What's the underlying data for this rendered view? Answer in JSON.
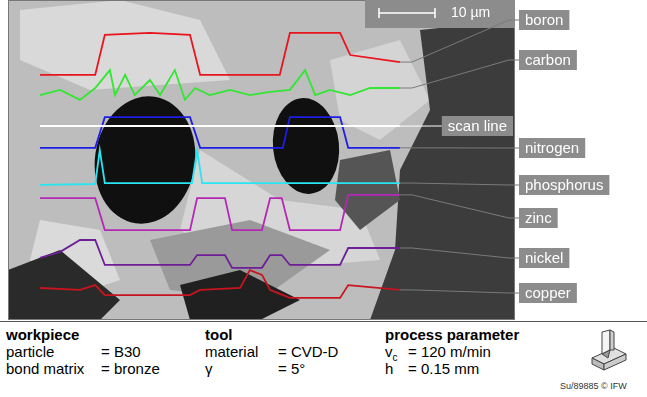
{
  "chart_data": {
    "type": "line",
    "annotations": [
      "10 µm"
    ],
    "xlim": [
      0,
      100
    ],
    "ylim": [
      0,
      100
    ],
    "xticks": [
      0,
      100
    ],
    "yticks": [
      0,
      100
    ],
    "grid": false,
    "tick_labels": false,
    "legend": "right",
    "series": [
      {
        "name": "boron",
        "color": "#e8141e",
        "line_style": "solid",
        "x": [
          6.3,
          17.2,
          19.1,
          28.0,
          35.9,
          37.9,
          53.6,
          55.6,
          65.5,
          67.5,
          77.3
        ],
        "values": [
          76.6,
          76.6,
          89.1,
          89.7,
          89.1,
          76.6,
          76.6,
          89.7,
          89.7,
          82.8,
          80.6
        ]
      },
      {
        "name": "carbon",
        "color": "#32e632",
        "line_style": "solid",
        "x": [
          6.3,
          10.3,
          14.2,
          17.2,
          20.1,
          21.1,
          23.1,
          25.0,
          28.0,
          30.0,
          32.9,
          34.9,
          36.9,
          39.8,
          43.8,
          47.7,
          51.7,
          55.6,
          58.6,
          60.6,
          63.5,
          67.5,
          71.4,
          77.3
        ],
        "values": [
          70.3,
          71.9,
          68.8,
          72.5,
          78.1,
          70.3,
          76.6,
          70.3,
          75.0,
          70.3,
          78.1,
          68.8,
          72.5,
          70.3,
          71.9,
          70.3,
          71.3,
          71.9,
          78.1,
          70.3,
          71.9,
          70.3,
          72.5,
          72.5
        ]
      },
      {
        "name": "scan line",
        "color": "#ffffff",
        "line_style": "solid",
        "x": [
          6.3,
          77.3
        ],
        "values": [
          60.6,
          60.6
        ]
      },
      {
        "name": "nitrogen",
        "color": "#1e1ee6",
        "line_style": "solid",
        "x": [
          6.3,
          17.2,
          19.1,
          35.9,
          37.9,
          54.2,
          55.6,
          65.5,
          67.1,
          77.3
        ],
        "values": [
          53.8,
          53.8,
          63.4,
          63.4,
          53.8,
          53.8,
          63.4,
          63.4,
          53.8,
          53.8
        ]
      },
      {
        "name": "phosphorus",
        "color": "#28e6f0",
        "line_style": "solid",
        "x": [
          6.3,
          17.2,
          18.1,
          19.1,
          36.3,
          37.3,
          38.3,
          77.3
        ],
        "values": [
          42.2,
          42.5,
          53.1,
          42.8,
          42.8,
          53.1,
          42.8,
          42.8
        ]
      },
      {
        "name": "zinc",
        "color": "#b428b4",
        "line_style": "solid",
        "x": [
          6.3,
          17.2,
          19.1,
          35.9,
          37.3,
          42.8,
          44.2,
          50.1,
          51.7,
          54.0,
          55.6,
          65.5,
          67.1,
          77.3
        ],
        "values": [
          38.1,
          38.1,
          28.1,
          28.1,
          38.1,
          38.1,
          28.1,
          28.1,
          38.1,
          38.1,
          28.1,
          28.1,
          39.1,
          39.1
        ]
      },
      {
        "name": "nickel",
        "color": "#6e1e96",
        "line_style": "solid",
        "x": [
          6.3,
          10.3,
          14.2,
          17.2,
          19.1,
          35.9,
          37.3,
          42.8,
          44.2,
          50.1,
          51.7,
          54.0,
          55.6,
          65.5,
          67.1,
          77.3
        ],
        "values": [
          19.4,
          21.3,
          25.0,
          25.0,
          17.2,
          17.2,
          20.3,
          20.3,
          16.3,
          16.3,
          20.3,
          20.3,
          17.2,
          17.2,
          22.5,
          22.5
        ]
      },
      {
        "name": "copper",
        "color": "#c8141e",
        "line_style": "solid",
        "x": [
          6.3,
          14.2,
          17.2,
          19.1,
          35.9,
          37.9,
          45.8,
          47.7,
          50.1,
          51.7,
          55.6,
          65.5,
          67.1,
          77.3
        ],
        "values": [
          10.0,
          9.4,
          10.9,
          7.8,
          7.8,
          9.4,
          10.0,
          15.6,
          14.1,
          9.4,
          6.9,
          6.9,
          10.9,
          9.4
        ]
      }
    ]
  },
  "caption": {
    "columns": [
      {
        "title": "workpiece",
        "rows": [
          {
            "label": "particle",
            "value": "= B30"
          },
          {
            "label": "bond matrix",
            "value": "= bronze"
          }
        ]
      },
      {
        "title": "tool",
        "rows": [
          {
            "label": "material",
            "value": "= CVD-D"
          },
          {
            "label": "γ",
            "value": "= 5°"
          }
        ]
      },
      {
        "title": "process parameter",
        "rows": [
          {
            "label": "v",
            "sub": "c",
            "value": "= 120 m/min"
          },
          {
            "label": "h",
            "value": "= 0.15 mm"
          }
        ]
      }
    ],
    "credit": "Su/89885 © IFW"
  }
}
